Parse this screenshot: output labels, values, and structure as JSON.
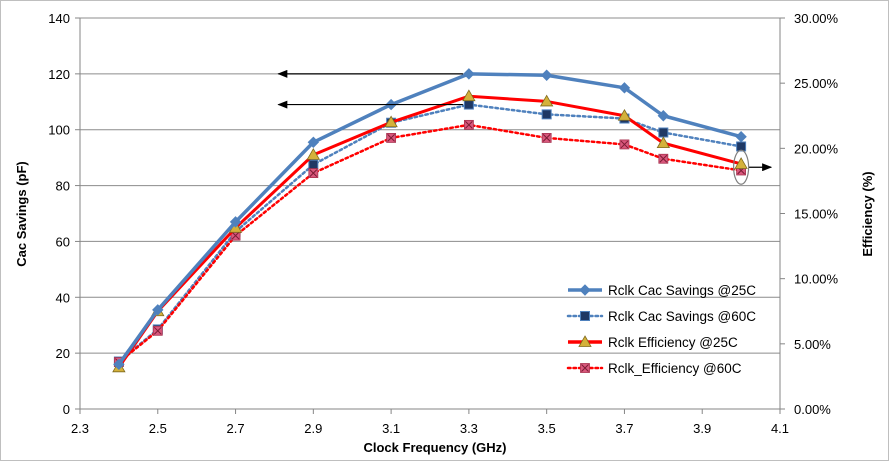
{
  "chart_data": {
    "type": "line",
    "xlabel": "Clock Frequency (GHz)",
    "ylabel_left": "Cac Savings (pF)",
    "ylabel_right": "Efficiency (%)",
    "xlim": [
      2.3,
      4.1
    ],
    "ylim_left": [
      0,
      140
    ],
    "ylim_right": [
      0,
      30
    ],
    "x_ticks": [
      "2.3",
      "2.5",
      "2.7",
      "2.9",
      "3.1",
      "3.3",
      "3.5",
      "3.7",
      "3.9",
      "4.1"
    ],
    "y_ticks_left": [
      "0",
      "20",
      "40",
      "60",
      "80",
      "100",
      "120",
      "140"
    ],
    "y_ticks_right": [
      "0.00%",
      "5.00%",
      "10.00%",
      "15.00%",
      "20.00%",
      "25.00%",
      "30.00%"
    ],
    "grid": "horizontal",
    "legend_position": "bottom-right",
    "x": [
      2.4,
      2.5,
      2.7,
      2.9,
      3.1,
      3.3,
      3.5,
      3.7,
      3.8,
      4.0
    ],
    "series": [
      {
        "name": "Rclk Cac Savings @25C",
        "axis": "left",
        "color": "#4f81bd",
        "line": "solid",
        "marker": "diamond",
        "values": [
          16,
          35.5,
          67,
          95.5,
          109,
          120,
          119.5,
          115,
          105,
          97.5
        ]
      },
      {
        "name": "Rclk Cac Savings @60C",
        "axis": "left",
        "color": "#4f81bd",
        "marker_color": "#1f3864",
        "line": "dotted",
        "marker": "square",
        "values": [
          17,
          28.5,
          63.5,
          87.5,
          102.5,
          109,
          105.5,
          104,
          99,
          94
        ]
      },
      {
        "name": "Rclk  Efficiency  @25C",
        "axis": "right",
        "color": "#ff0000",
        "marker_color": "#d4b13a",
        "line": "solid",
        "marker": "triangle",
        "values": [
          3.2,
          7.5,
          13.9,
          19.5,
          22.0,
          24.0,
          23.6,
          22.5,
          20.4,
          18.8
        ]
      },
      {
        "name": "Rclk_Efficiency  @60C",
        "axis": "right",
        "color": "#ff0000",
        "marker_color": "#d9577c",
        "line": "dotted",
        "marker": "x-square",
        "values": [
          3.6,
          6.0,
          13.3,
          18.1,
          20.8,
          21.8,
          20.8,
          20.3,
          19.2,
          18.3
        ]
      }
    ]
  }
}
